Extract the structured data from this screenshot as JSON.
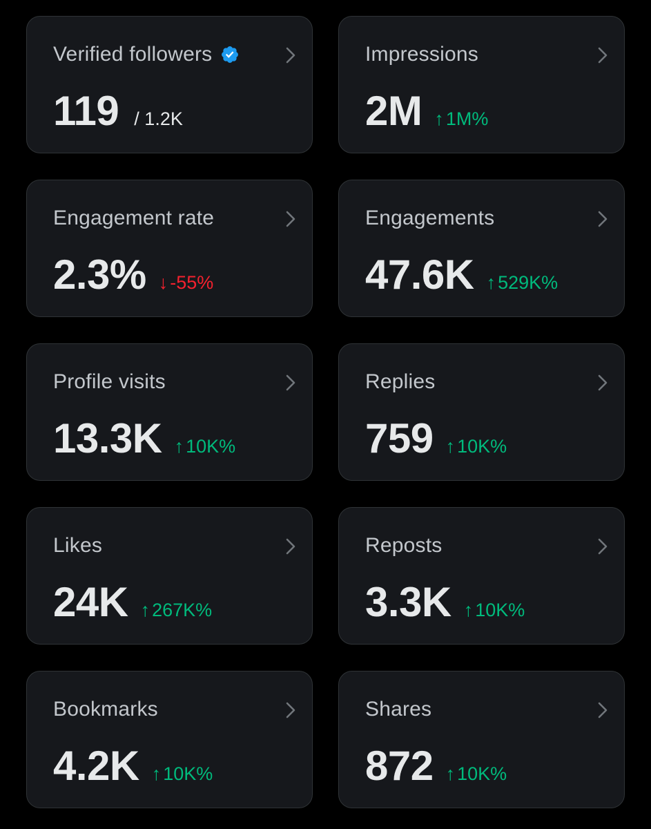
{
  "colors": {
    "background": "#000000",
    "card": "#16181c",
    "border": "#2f3336",
    "label": "#c3c7cc",
    "value": "#e7e9ea",
    "positive": "#00ba7c",
    "negative": "#f4212e",
    "verified": "#1d9bf0"
  },
  "cards": [
    {
      "label": "Verified followers",
      "icon": "verified-badge-icon",
      "value": "119",
      "secondary": "/ 1.2K"
    },
    {
      "label": "Impressions",
      "value": "2M",
      "change": {
        "direction": "up",
        "arrow": "↑",
        "text": "1M%"
      }
    },
    {
      "label": "Engagement rate",
      "value": "2.3%",
      "change": {
        "direction": "down",
        "arrow": "↓",
        "text": "-55%"
      }
    },
    {
      "label": "Engagements",
      "value": "47.6K",
      "change": {
        "direction": "up",
        "arrow": "↑",
        "text": "529K%"
      }
    },
    {
      "label": "Profile visits",
      "value": "13.3K",
      "change": {
        "direction": "up",
        "arrow": "↑",
        "text": "10K%"
      }
    },
    {
      "label": "Replies",
      "value": "759",
      "change": {
        "direction": "up",
        "arrow": "↑",
        "text": "10K%"
      }
    },
    {
      "label": "Likes",
      "value": "24K",
      "change": {
        "direction": "up",
        "arrow": "↑",
        "text": "267K%"
      }
    },
    {
      "label": "Reposts",
      "value": "3.3K",
      "change": {
        "direction": "up",
        "arrow": "↑",
        "text": "10K%"
      }
    },
    {
      "label": "Bookmarks",
      "value": "4.2K",
      "change": {
        "direction": "up",
        "arrow": "↑",
        "text": "10K%"
      }
    },
    {
      "label": "Shares",
      "value": "872",
      "change": {
        "direction": "up",
        "arrow": "↑",
        "text": "10K%"
      }
    }
  ]
}
